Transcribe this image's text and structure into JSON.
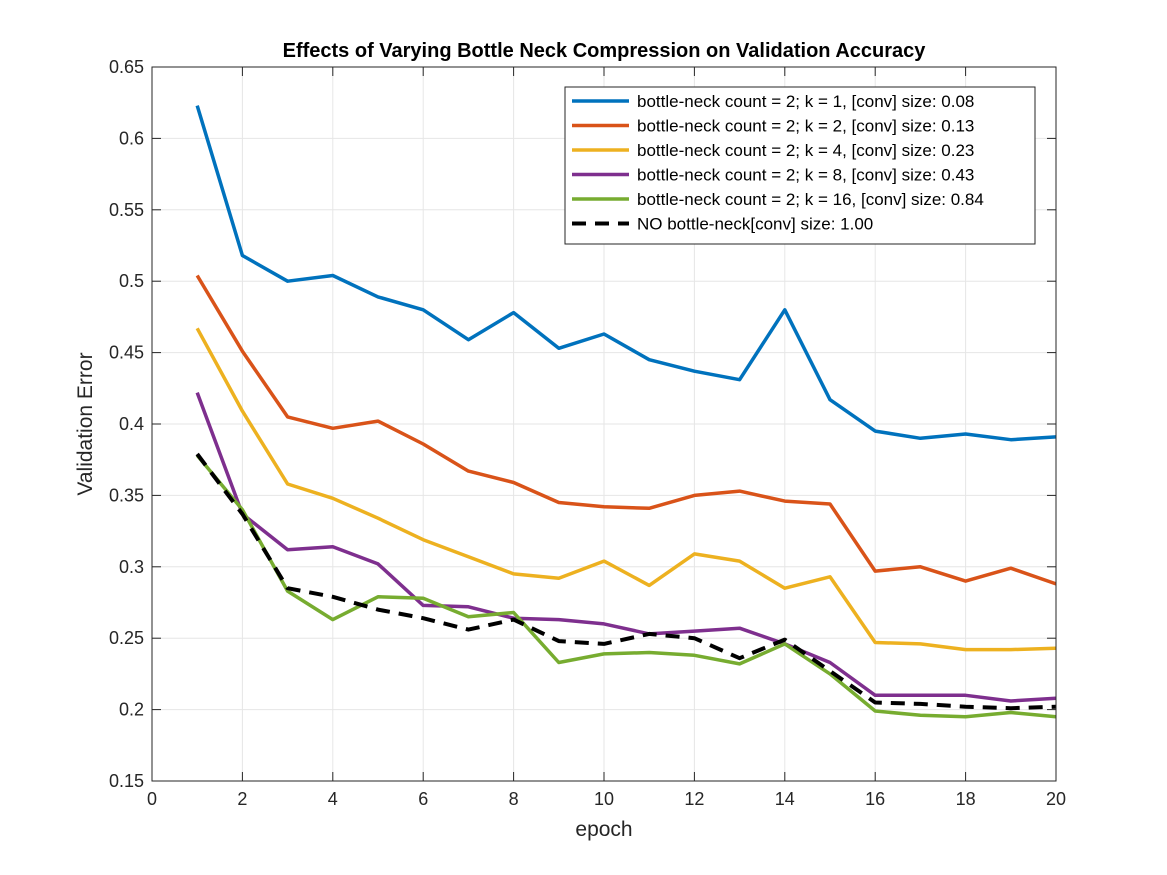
{
  "chart_data": {
    "type": "line",
    "title": "Effects of Varying Bottle Neck Compression on Validation Accuracy",
    "xlabel": "epoch",
    "ylabel": "Validation Error",
    "xlim": [
      0,
      20
    ],
    "ylim": [
      0.15,
      0.65
    ],
    "xticks": [
      "0",
      "2",
      "4",
      "6",
      "8",
      "10",
      "12",
      "14",
      "16",
      "18",
      "20"
    ],
    "yticks": [
      "0.15",
      "0.2",
      "0.25",
      "0.3",
      "0.35",
      "0.4",
      "0.45",
      "0.5",
      "0.55",
      "0.6",
      "0.65"
    ],
    "grid": true,
    "legend_position": "top-right",
    "x": [
      1,
      2,
      3,
      4,
      5,
      6,
      7,
      8,
      9,
      10,
      11,
      12,
      13,
      14,
      15,
      16,
      17,
      18,
      19,
      20
    ],
    "series": [
      {
        "name": "bottle-neck count = 2; k = 1, [conv] size: 0.08",
        "color": "#0072BD",
        "dashed": false,
        "values": [
          0.623,
          0.518,
          0.5,
          0.504,
          0.489,
          0.48,
          0.459,
          0.478,
          0.453,
          0.463,
          0.445,
          0.437,
          0.431,
          0.48,
          0.417,
          0.395,
          0.39,
          0.393,
          0.389,
          0.391
        ]
      },
      {
        "name": "bottle-neck count = 2; k = 2, [conv] size: 0.13",
        "color": "#D95319",
        "dashed": false,
        "values": [
          0.504,
          0.451,
          0.405,
          0.397,
          0.402,
          0.386,
          0.367,
          0.359,
          0.345,
          0.342,
          0.341,
          0.35,
          0.353,
          0.346,
          0.344,
          0.297,
          0.3,
          0.29,
          0.299,
          0.288
        ]
      },
      {
        "name": "bottle-neck count = 2; k = 4, [conv] size: 0.23",
        "color": "#EDB120",
        "dashed": false,
        "values": [
          0.467,
          0.409,
          0.358,
          0.348,
          0.334,
          0.319,
          0.307,
          0.295,
          0.292,
          0.304,
          0.287,
          0.309,
          0.304,
          0.285,
          0.293,
          0.247,
          0.246,
          0.242,
          0.242,
          0.243
        ]
      },
      {
        "name": "bottle-neck count = 2; k = 8, [conv] size: 0.43",
        "color": "#7E2F8E",
        "dashed": false,
        "values": [
          0.422,
          0.337,
          0.312,
          0.314,
          0.302,
          0.273,
          0.272,
          0.264,
          0.263,
          0.26,
          0.253,
          0.255,
          0.257,
          0.246,
          0.233,
          0.21,
          0.21,
          0.21,
          0.206,
          0.208
        ]
      },
      {
        "name": "bottle-neck count = 2; k = 16, [conv] size: 0.84",
        "color": "#77AC30",
        "dashed": false,
        "values": [
          0.378,
          0.34,
          0.283,
          0.263,
          0.279,
          0.278,
          0.265,
          0.268,
          0.233,
          0.239,
          0.24,
          0.238,
          0.232,
          0.246,
          0.225,
          0.199,
          0.196,
          0.195,
          0.198,
          0.195
        ]
      },
      {
        "name": "NO bottle-neck[conv] size: 1.00",
        "color": "#000000",
        "dashed": true,
        "values": [
          0.379,
          0.337,
          0.285,
          0.279,
          0.27,
          0.264,
          0.256,
          0.263,
          0.248,
          0.246,
          0.253,
          0.25,
          0.236,
          0.249,
          0.227,
          0.205,
          0.204,
          0.202,
          0.201,
          0.202
        ]
      }
    ]
  }
}
